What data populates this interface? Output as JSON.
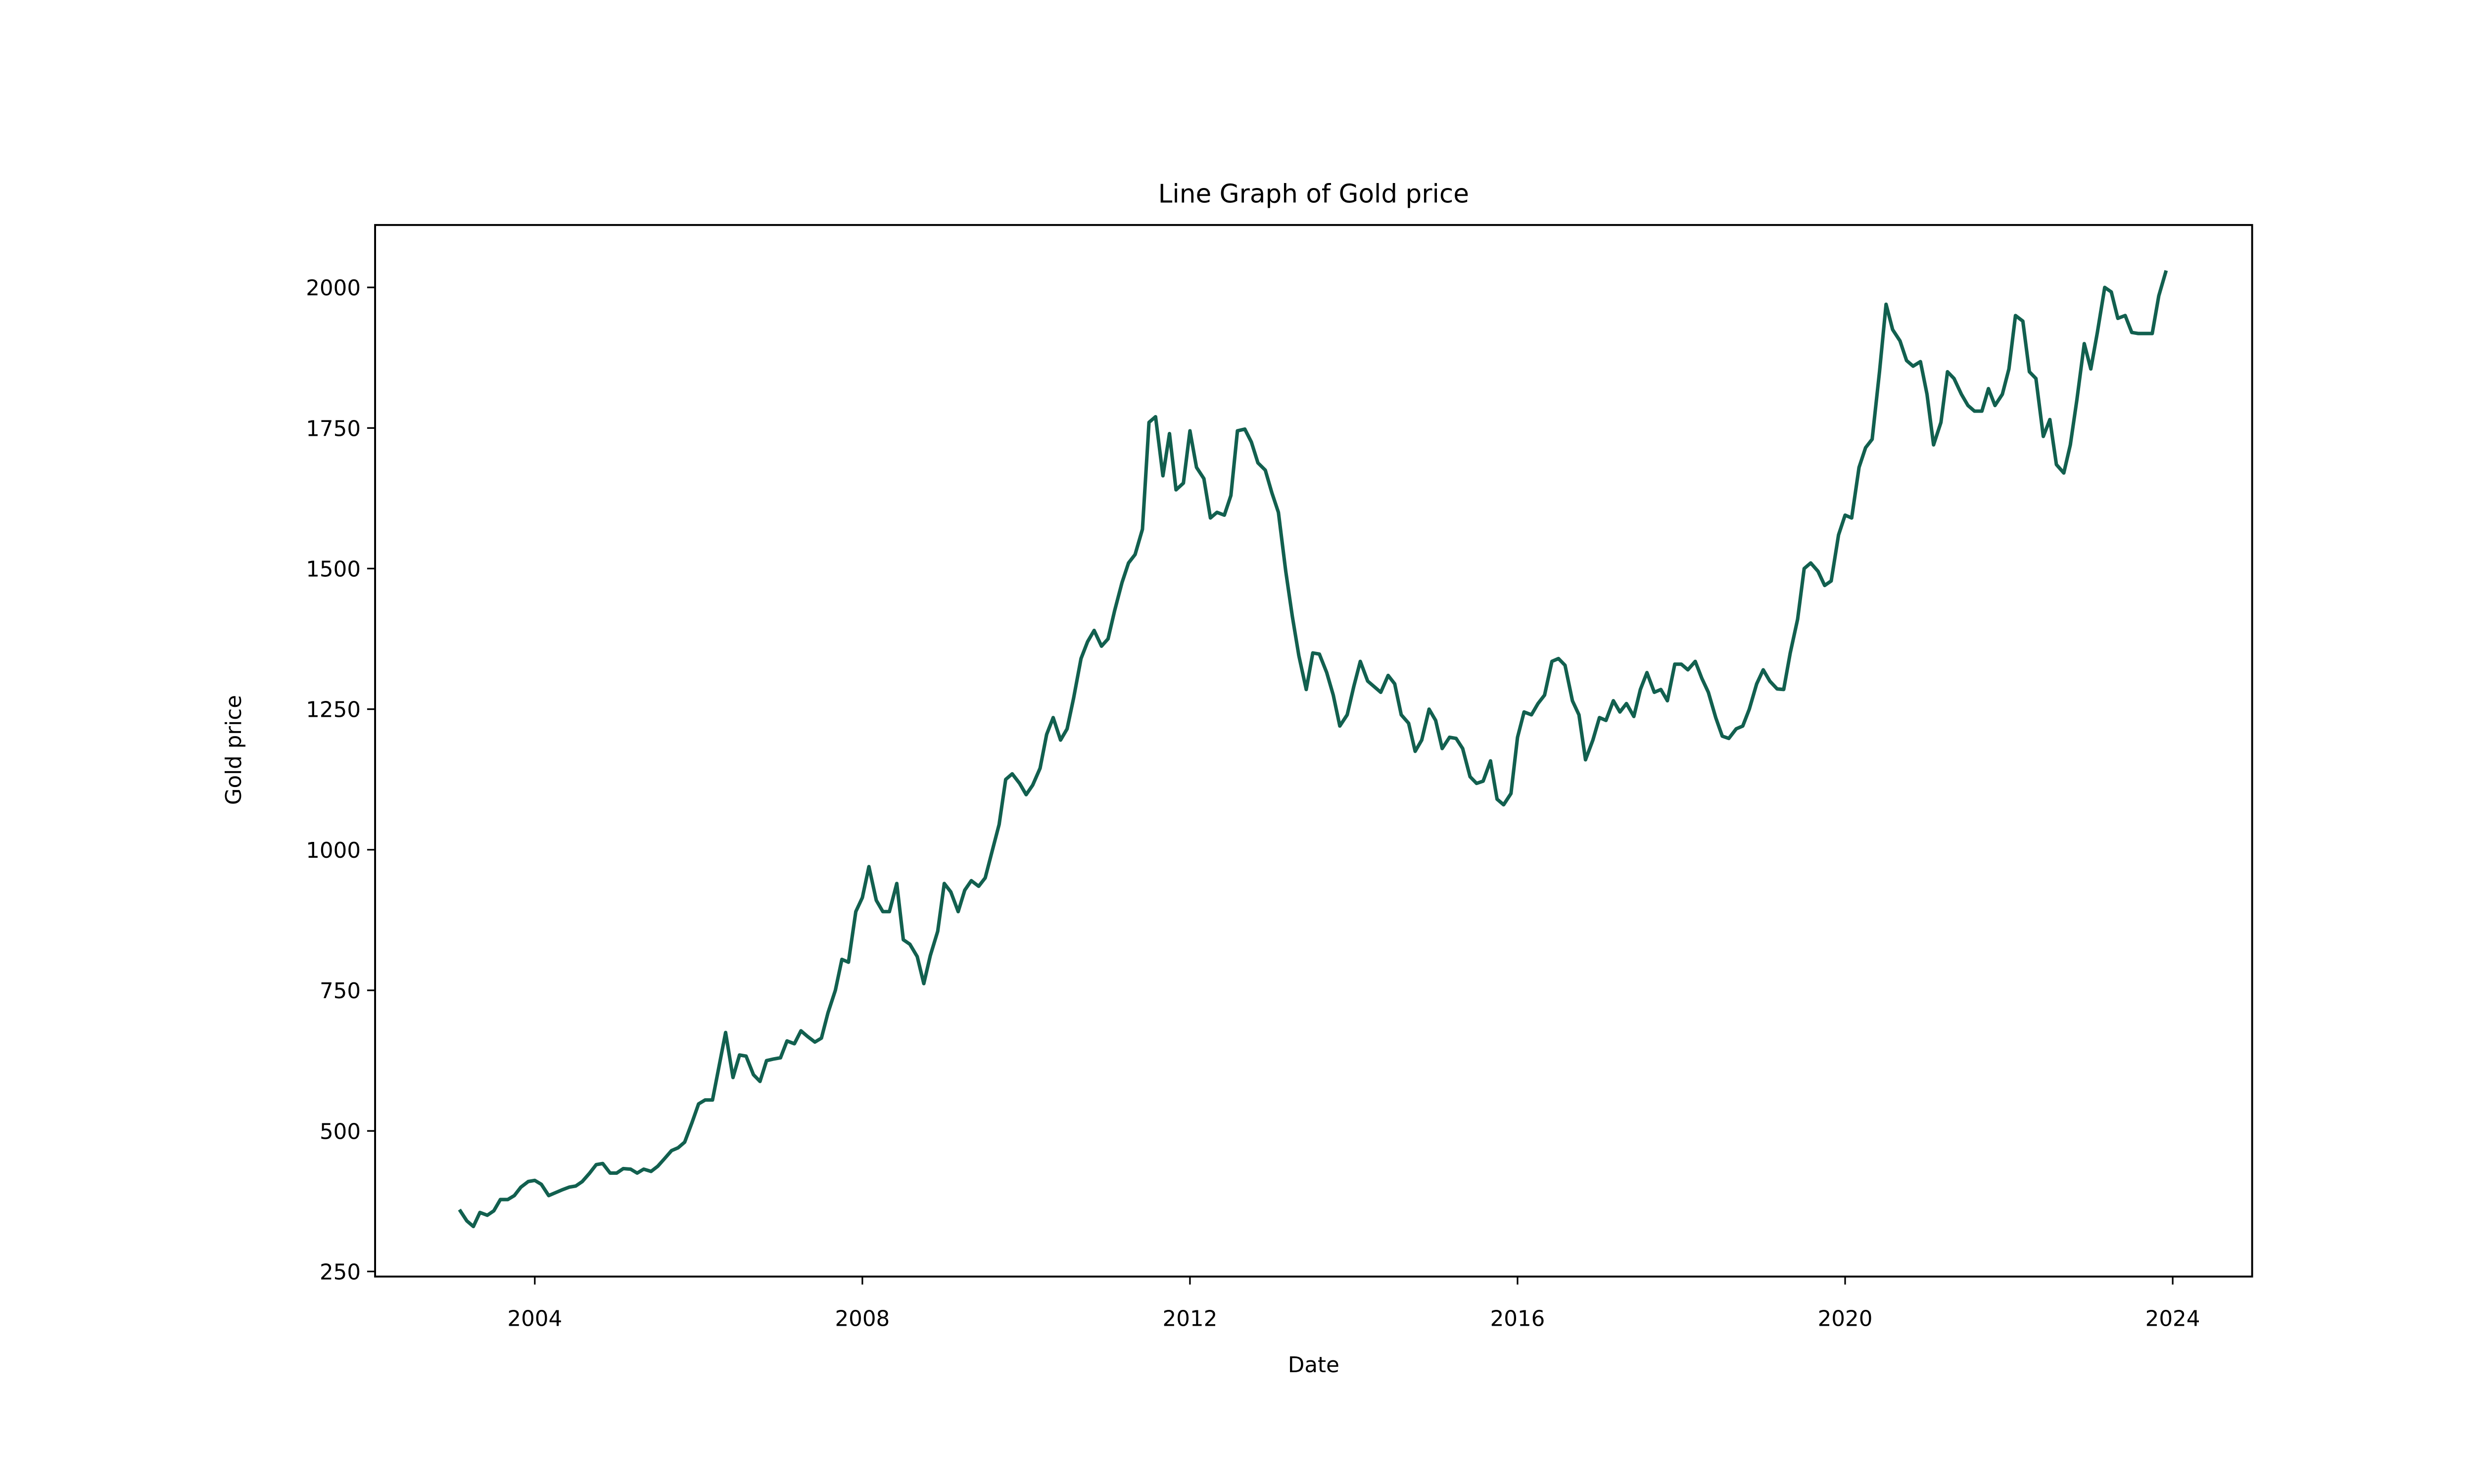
{
  "chart_data": {
    "type": "line",
    "title": "Line Graph of Gold price",
    "x_label": "Date",
    "y_label": "Gold price",
    "x": [
      2003.08,
      2003.17,
      2003.25,
      2003.33,
      2003.42,
      2003.5,
      2003.58,
      2003.67,
      2003.75,
      2003.83,
      2003.92,
      2004.0,
      2004.08,
      2004.17,
      2004.25,
      2004.33,
      2004.42,
      2004.5,
      2004.58,
      2004.67,
      2004.75,
      2004.83,
      2004.92,
      2005.0,
      2005.08,
      2005.17,
      2005.25,
      2005.33,
      2005.42,
      2005.5,
      2005.58,
      2005.67,
      2005.75,
      2005.83,
      2005.92,
      2006.0,
      2006.08,
      2006.17,
      2006.25,
      2006.33,
      2006.42,
      2006.5,
      2006.58,
      2006.67,
      2006.75,
      2006.83,
      2006.92,
      2007.0,
      2007.08,
      2007.17,
      2007.25,
      2007.33,
      2007.42,
      2007.5,
      2007.58,
      2007.67,
      2007.75,
      2007.83,
      2007.92,
      2008.0,
      2008.08,
      2008.17,
      2008.25,
      2008.33,
      2008.42,
      2008.5,
      2008.58,
      2008.67,
      2008.75,
      2008.83,
      2008.92,
      2009.0,
      2009.08,
      2009.17,
      2009.25,
      2009.33,
      2009.42,
      2009.5,
      2009.58,
      2009.67,
      2009.75,
      2009.83,
      2009.92,
      2010.0,
      2010.08,
      2010.17,
      2010.25,
      2010.33,
      2010.42,
      2010.5,
      2010.58,
      2010.67,
      2010.75,
      2010.83,
      2010.92,
      2011.0,
      2011.08,
      2011.17,
      2011.25,
      2011.33,
      2011.42,
      2011.5,
      2011.58,
      2011.67,
      2011.75,
      2011.83,
      2011.92,
      2012.0,
      2012.08,
      2012.17,
      2012.25,
      2012.33,
      2012.42,
      2012.5,
      2012.58,
      2012.67,
      2012.75,
      2012.83,
      2012.92,
      2013.0,
      2013.08,
      2013.17,
      2013.25,
      2013.33,
      2013.42,
      2013.5,
      2013.58,
      2013.67,
      2013.75,
      2013.83,
      2013.92,
      2014.0,
      2014.08,
      2014.17,
      2014.25,
      2014.33,
      2014.42,
      2014.5,
      2014.58,
      2014.67,
      2014.75,
      2014.83,
      2014.92,
      2015.0,
      2015.08,
      2015.17,
      2015.25,
      2015.33,
      2015.42,
      2015.5,
      2015.58,
      2015.67,
      2015.75,
      2015.83,
      2015.92,
      2016.0,
      2016.08,
      2016.17,
      2016.25,
      2016.33,
      2016.42,
      2016.5,
      2016.58,
      2016.67,
      2016.75,
      2016.83,
      2016.92,
      2017.0,
      2017.08,
      2017.17,
      2017.25,
      2017.33,
      2017.42,
      2017.5,
      2017.58,
      2017.67,
      2017.75,
      2017.83,
      2017.92,
      2018.0,
      2018.08,
      2018.17,
      2018.25,
      2018.33,
      2018.42,
      2018.5,
      2018.58,
      2018.67,
      2018.75,
      2018.83,
      2018.92,
      2019.0,
      2019.08,
      2019.17,
      2019.25,
      2019.33,
      2019.42,
      2019.5,
      2019.58,
      2019.67,
      2019.75,
      2019.83,
      2019.92,
      2020.0,
      2020.08,
      2020.17,
      2020.25,
      2020.33,
      2020.42,
      2020.5,
      2020.58,
      2020.67,
      2020.75,
      2020.83,
      2020.92,
      2021.0,
      2021.08,
      2021.17,
      2021.25,
      2021.33,
      2021.42,
      2021.5,
      2021.58,
      2021.67,
      2021.75,
      2021.83,
      2021.92,
      2022.0,
      2022.08,
      2022.17,
      2022.25,
      2022.33,
      2022.42,
      2022.5,
      2022.58,
      2022.67,
      2022.75,
      2022.83,
      2022.92,
      2023.0,
      2023.08,
      2023.17,
      2023.25,
      2023.33,
      2023.42,
      2023.5,
      2023.58,
      2023.67,
      2023.75,
      2023.83,
      2023.92
    ],
    "series": [
      {
        "name": "Gold price",
        "color": "#12604f",
        "values": [
          360,
          340,
          330,
          355,
          350,
          358,
          378,
          378,
          385,
          400,
          410,
          412,
          405,
          385,
          390,
          395,
          400,
          402,
          410,
          425,
          440,
          442,
          425,
          425,
          433,
          432,
          425,
          432,
          428,
          437,
          450,
          465,
          470,
          480,
          515,
          548,
          555,
          555,
          615,
          675,
          595,
          635,
          633,
          600,
          588,
          625,
          628,
          630,
          660,
          655,
          678,
          668,
          658,
          665,
          710,
          750,
          805,
          800,
          890,
          915,
          970,
          910,
          890,
          890,
          940,
          840,
          832,
          810,
          762,
          812,
          855,
          940,
          925,
          890,
          928,
          945,
          935,
          950,
          995,
          1045,
          1125,
          1135,
          1118,
          1098,
          1115,
          1145,
          1205,
          1235,
          1195,
          1215,
          1270,
          1340,
          1370,
          1390,
          1362,
          1375,
          1425,
          1475,
          1510,
          1525,
          1570,
          1760,
          1770,
          1665,
          1740,
          1640,
          1652,
          1745,
          1680,
          1660,
          1590,
          1600,
          1595,
          1630,
          1745,
          1748,
          1725,
          1688,
          1675,
          1635,
          1600,
          1495,
          1415,
          1345,
          1285,
          1350,
          1348,
          1315,
          1275,
          1220,
          1240,
          1290,
          1335,
          1300,
          1290,
          1280,
          1310,
          1295,
          1240,
          1225,
          1175,
          1195,
          1250,
          1230,
          1180,
          1200,
          1198,
          1180,
          1130,
          1118,
          1122,
          1158,
          1090,
          1080,
          1100,
          1200,
          1245,
          1240,
          1260,
          1275,
          1335,
          1340,
          1328,
          1265,
          1240,
          1160,
          1195,
          1235,
          1230,
          1265,
          1245,
          1260,
          1237,
          1285,
          1315,
          1280,
          1285,
          1265,
          1330,
          1330,
          1320,
          1335,
          1305,
          1280,
          1235,
          1202,
          1198,
          1215,
          1220,
          1250,
          1295,
          1320,
          1300,
          1286,
          1285,
          1350,
          1410,
          1500,
          1510,
          1495,
          1470,
          1478,
          1560,
          1595,
          1590,
          1680,
          1715,
          1730,
          1850,
          1970,
          1925,
          1905,
          1870,
          1860,
          1868,
          1810,
          1720,
          1760,
          1850,
          1838,
          1810,
          1790,
          1780,
          1780,
          1820,
          1790,
          1810,
          1855,
          1950,
          1940,
          1850,
          1838,
          1735,
          1765,
          1685,
          1670,
          1720,
          1800,
          1900,
          1855,
          1920,
          2000,
          1992,
          1945,
          1950,
          1920,
          1918,
          1918,
          1918,
          1985,
          2030
        ]
      }
    ],
    "xlim": [
      2002.05,
      2024.97
    ],
    "xticks": [
      2004,
      2008,
      2012,
      2016,
      2020,
      2024
    ],
    "ylim": [
      241,
      2111
    ],
    "yticks": [
      250,
      500,
      750,
      1000,
      1250,
      1500,
      1750,
      2000
    ],
    "grid": false
  }
}
